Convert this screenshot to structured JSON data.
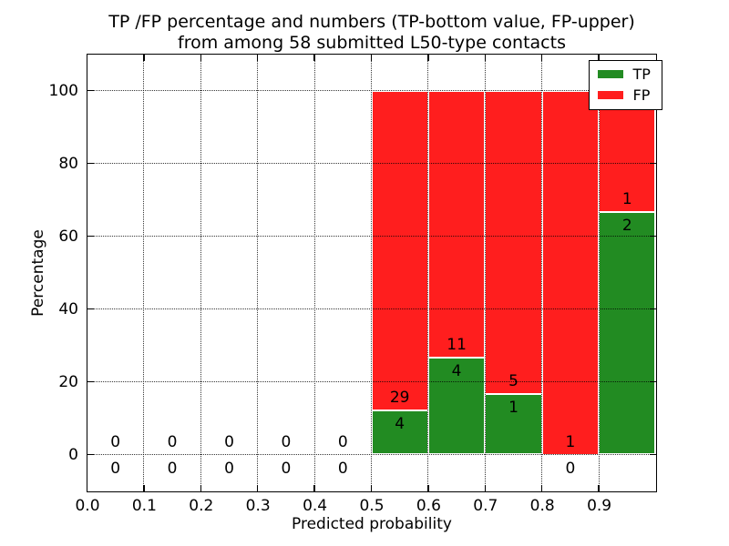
{
  "chart_data": {
    "type": "bar",
    "stacked": true,
    "title_lines": [
      "TP /FP percentage and numbers (TP-bottom value, FP-upper)",
      "from among 58 submitted L50-type contacts"
    ],
    "total_contacts": 58,
    "xlabel": "Predicted probability",
    "ylabel": "Percentage",
    "xlim": [
      0.0,
      1.0
    ],
    "ylim": [
      -10,
      110
    ],
    "grid": true,
    "legend_position": "upper right",
    "bin_edges": [
      0.0,
      0.1,
      0.2,
      0.3,
      0.4,
      0.5,
      0.6,
      0.7,
      0.8,
      0.9,
      1.0
    ],
    "xtick_values": [
      0.0,
      0.1,
      0.2,
      0.3,
      0.4,
      0.5,
      0.6,
      0.7,
      0.8,
      0.9
    ],
    "xtick_labels": [
      "0.0",
      "0.1",
      "0.2",
      "0.3",
      "0.4",
      "0.5",
      "0.6",
      "0.7",
      "0.8",
      "0.9"
    ],
    "xgrid_values": [
      0.1,
      0.2,
      0.3,
      0.4,
      0.5,
      0.6,
      0.7,
      0.8,
      0.9
    ],
    "ytick_values": [
      0,
      20,
      40,
      60,
      80,
      100
    ],
    "ytick_labels": [
      "0",
      "20",
      "40",
      "60",
      "80",
      "100"
    ],
    "series": [
      {
        "name": "TP",
        "color": "#228b22",
        "counts": [
          0,
          0,
          0,
          0,
          0,
          4,
          4,
          1,
          0,
          2
        ],
        "pct": [
          0,
          0,
          0,
          0,
          0,
          12.12,
          26.67,
          16.67,
          0,
          66.67
        ]
      },
      {
        "name": "FP",
        "color": "#ff1e1e",
        "counts": [
          0,
          0,
          0,
          0,
          0,
          29,
          11,
          5,
          1,
          1
        ],
        "pct": [
          0,
          0,
          0,
          0,
          0,
          87.88,
          73.33,
          83.33,
          100,
          33.33
        ]
      }
    ]
  }
}
